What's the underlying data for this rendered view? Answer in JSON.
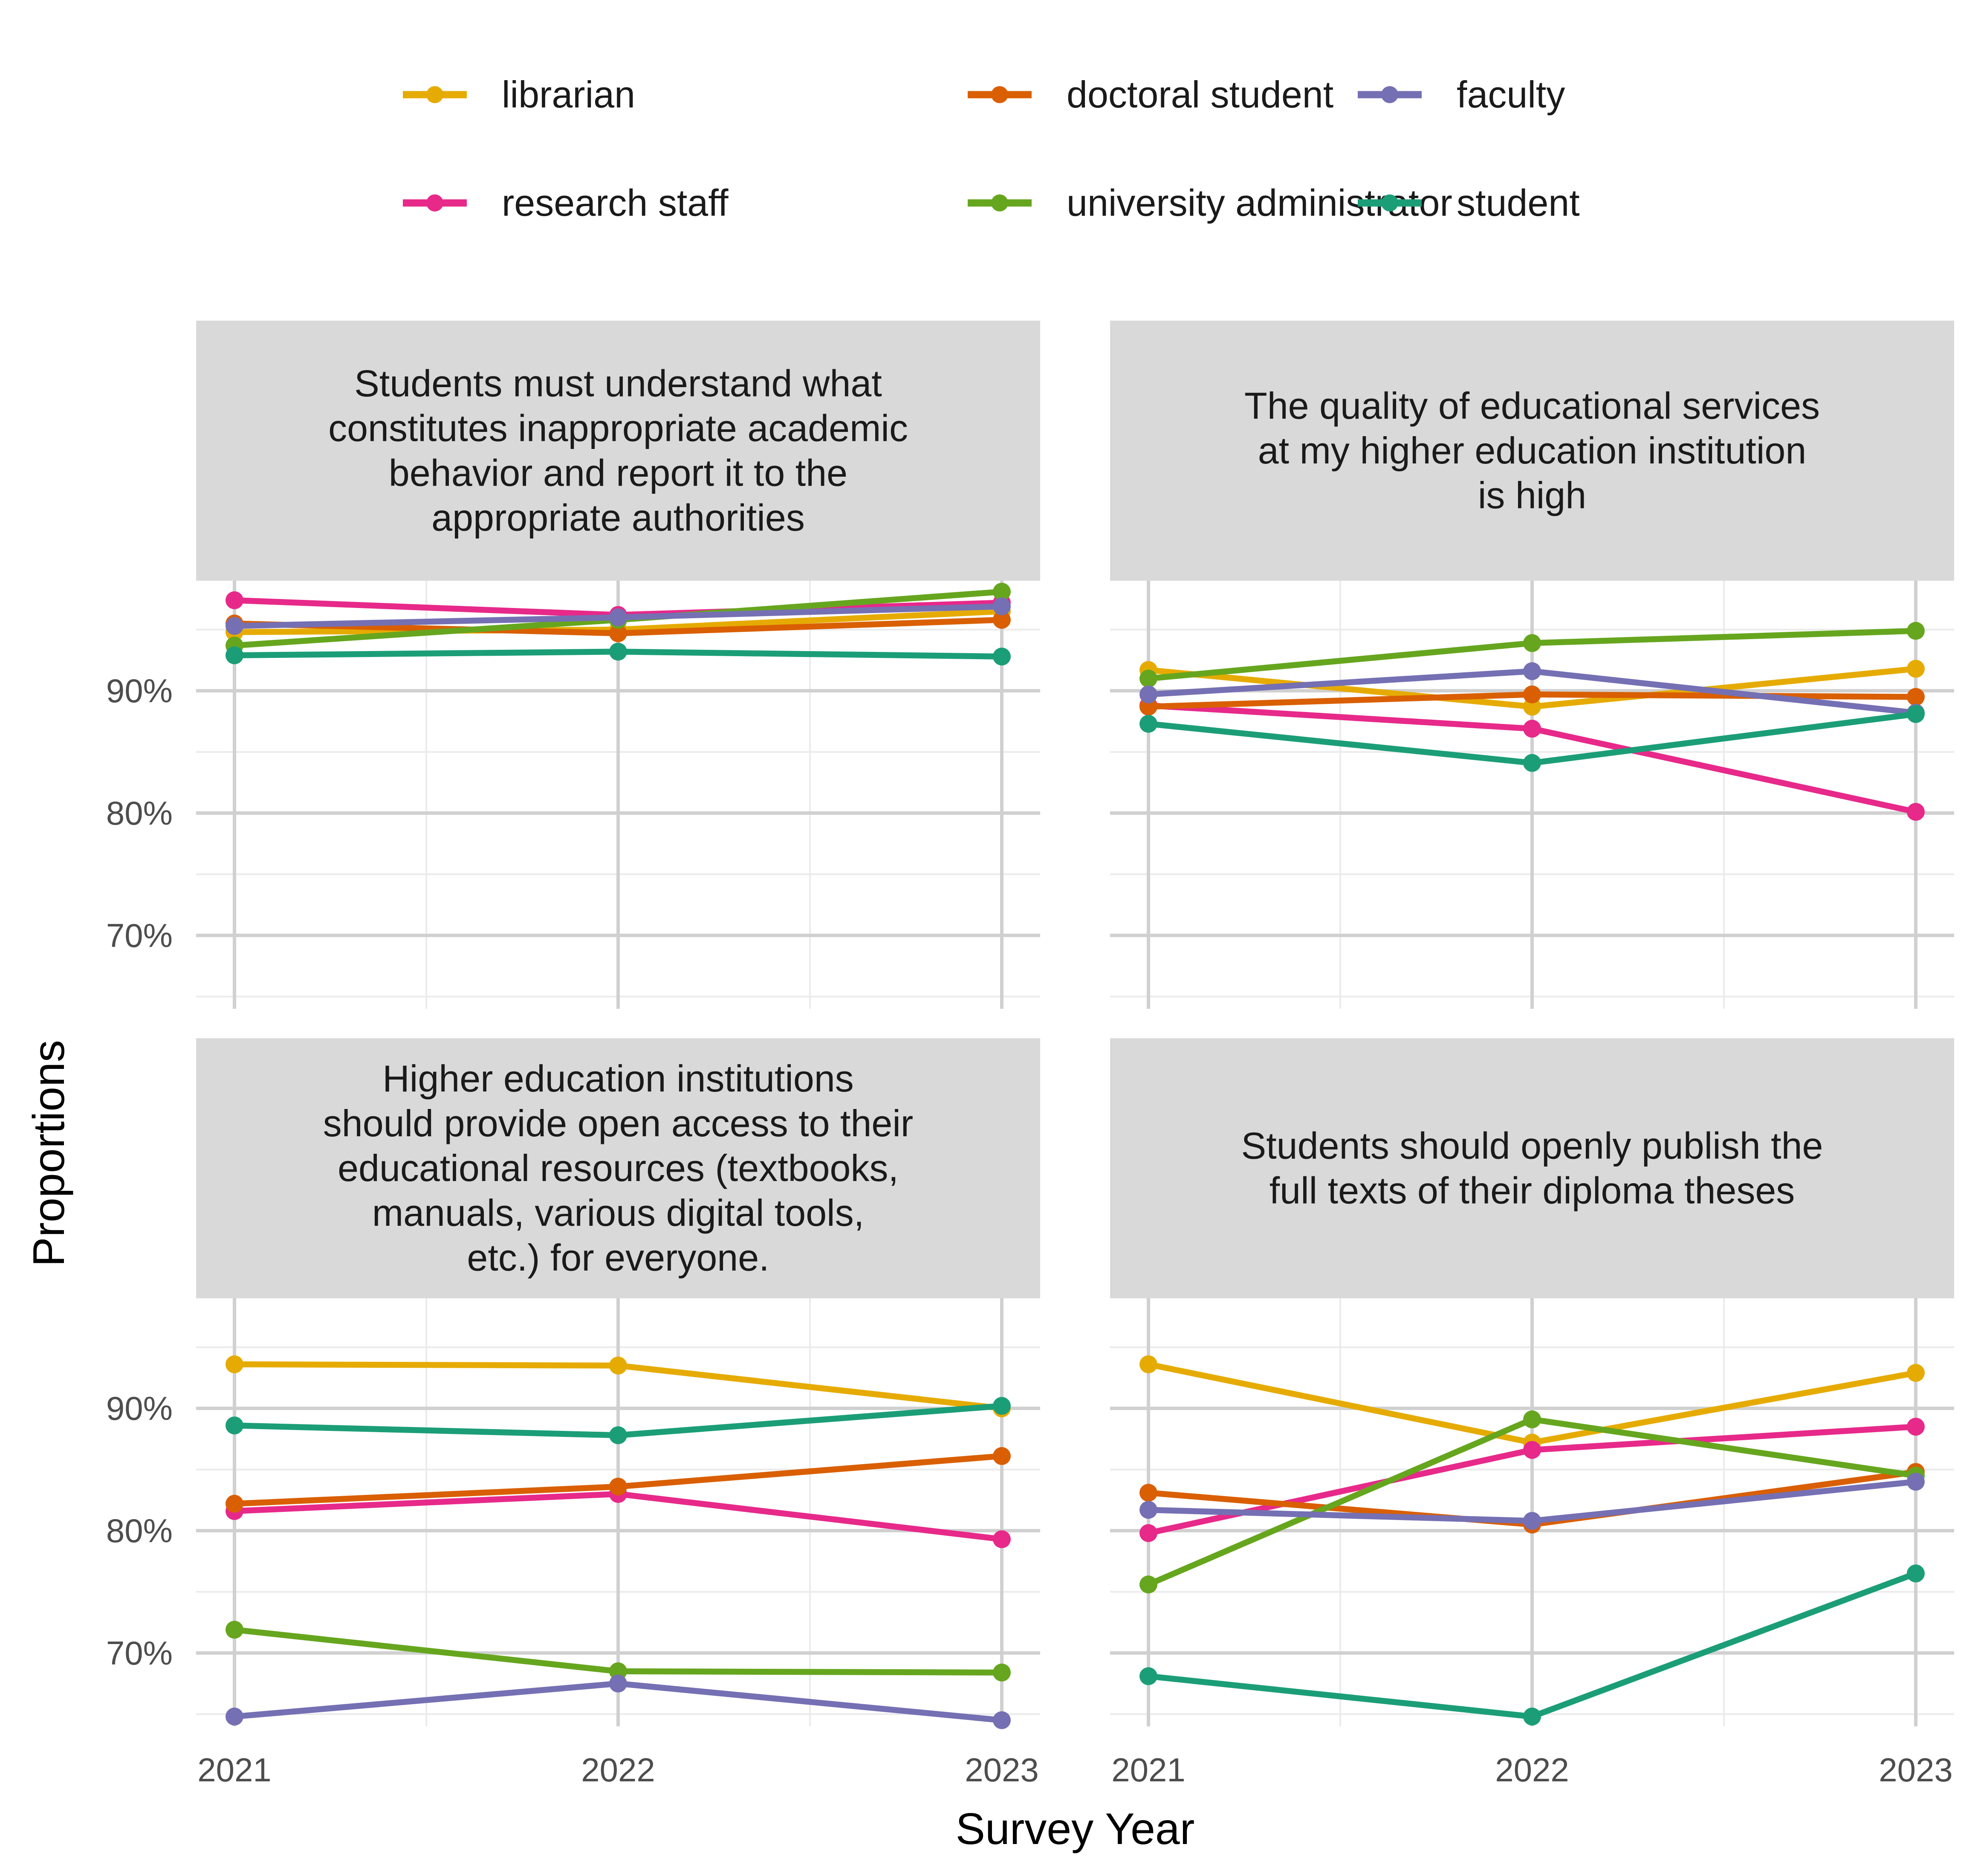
{
  "chart_data": {
    "type": "line",
    "xlabel": "Survey Year",
    "ylabel": "Proportions",
    "x": [
      "2021",
      "2022",
      "2023"
    ],
    "ylim": [
      0.64,
      0.99
    ],
    "y_ticks": [
      "70%",
      "80%",
      "90%"
    ],
    "grid": true,
    "legend_position": "top",
    "legend": [
      {
        "name": "librarian",
        "color": "#E6AB02"
      },
      {
        "name": "research staff",
        "color": "#E7298A"
      },
      {
        "name": "doctoral student",
        "color": "#D95F02"
      },
      {
        "name": "university administrator",
        "color": "#66A61E"
      },
      {
        "name": "faculty",
        "color": "#7570B3"
      },
      {
        "name": "student",
        "color": "#1B9E77"
      }
    ],
    "panels": [
      {
        "title": [
          "Students must understand what",
          "constitutes inappropriate academic",
          "behavior and report it to the",
          "appropriate authorities"
        ],
        "series": [
          {
            "name": "librarian",
            "values": [
              0.948,
              0.95,
              0.965
            ]
          },
          {
            "name": "research staff",
            "values": [
              0.974,
              0.962,
              0.972
            ]
          },
          {
            "name": "doctoral student",
            "values": [
              0.955,
              0.947,
              0.958
            ]
          },
          {
            "name": "university administrator",
            "values": [
              0.937,
              0.958,
              0.981
            ]
          },
          {
            "name": "faculty",
            "values": [
              0.953,
              0.96,
              0.969
            ]
          },
          {
            "name": "student",
            "values": [
              0.929,
              0.932,
              0.928
            ]
          }
        ]
      },
      {
        "title": [
          "The quality of educational services",
          "at my higher education institution",
          "is high"
        ],
        "series": [
          {
            "name": "librarian",
            "values": [
              0.917,
              0.887,
              0.918
            ]
          },
          {
            "name": "research staff",
            "values": [
              0.888,
              0.869,
              0.801
            ]
          },
          {
            "name": "doctoral student",
            "values": [
              0.887,
              0.897,
              0.895
            ]
          },
          {
            "name": "university administrator",
            "values": [
              0.91,
              0.939,
              0.949
            ]
          },
          {
            "name": "faculty",
            "values": [
              0.897,
              0.916,
              0.882
            ]
          },
          {
            "name": "student",
            "values": [
              0.873,
              0.841,
              0.881
            ]
          }
        ]
      },
      {
        "title": [
          "Higher education institutions",
          "should provide open access to their",
          "educational resources (textbooks,",
          "manuals, various digital tools,",
          "etc.) for everyone."
        ],
        "series": [
          {
            "name": "librarian",
            "values": [
              0.936,
              0.935,
              0.9
            ]
          },
          {
            "name": "research staff",
            "values": [
              0.816,
              0.83,
              0.793
            ]
          },
          {
            "name": "doctoral student",
            "values": [
              0.822,
              0.836,
              0.861
            ]
          },
          {
            "name": "university administrator",
            "values": [
              0.719,
              0.685,
              0.684
            ]
          },
          {
            "name": "faculty",
            "values": [
              0.648,
              0.675,
              0.645
            ]
          },
          {
            "name": "student",
            "values": [
              0.886,
              0.878,
              0.902
            ]
          }
        ]
      },
      {
        "title": [
          "Students should openly publish the",
          "full texts of their diploma theses"
        ],
        "series": [
          {
            "name": "librarian",
            "values": [
              0.936,
              0.872,
              0.929
            ]
          },
          {
            "name": "research staff",
            "values": [
              0.798,
              0.866,
              0.885
            ]
          },
          {
            "name": "doctoral student",
            "values": [
              0.831,
              0.805,
              0.848
            ]
          },
          {
            "name": "university administrator",
            "values": [
              0.756,
              0.891,
              0.845
            ]
          },
          {
            "name": "faculty",
            "values": [
              0.817,
              0.808,
              0.84
            ]
          },
          {
            "name": "student",
            "values": [
              0.681,
              0.648,
              0.765
            ]
          }
        ]
      }
    ]
  }
}
